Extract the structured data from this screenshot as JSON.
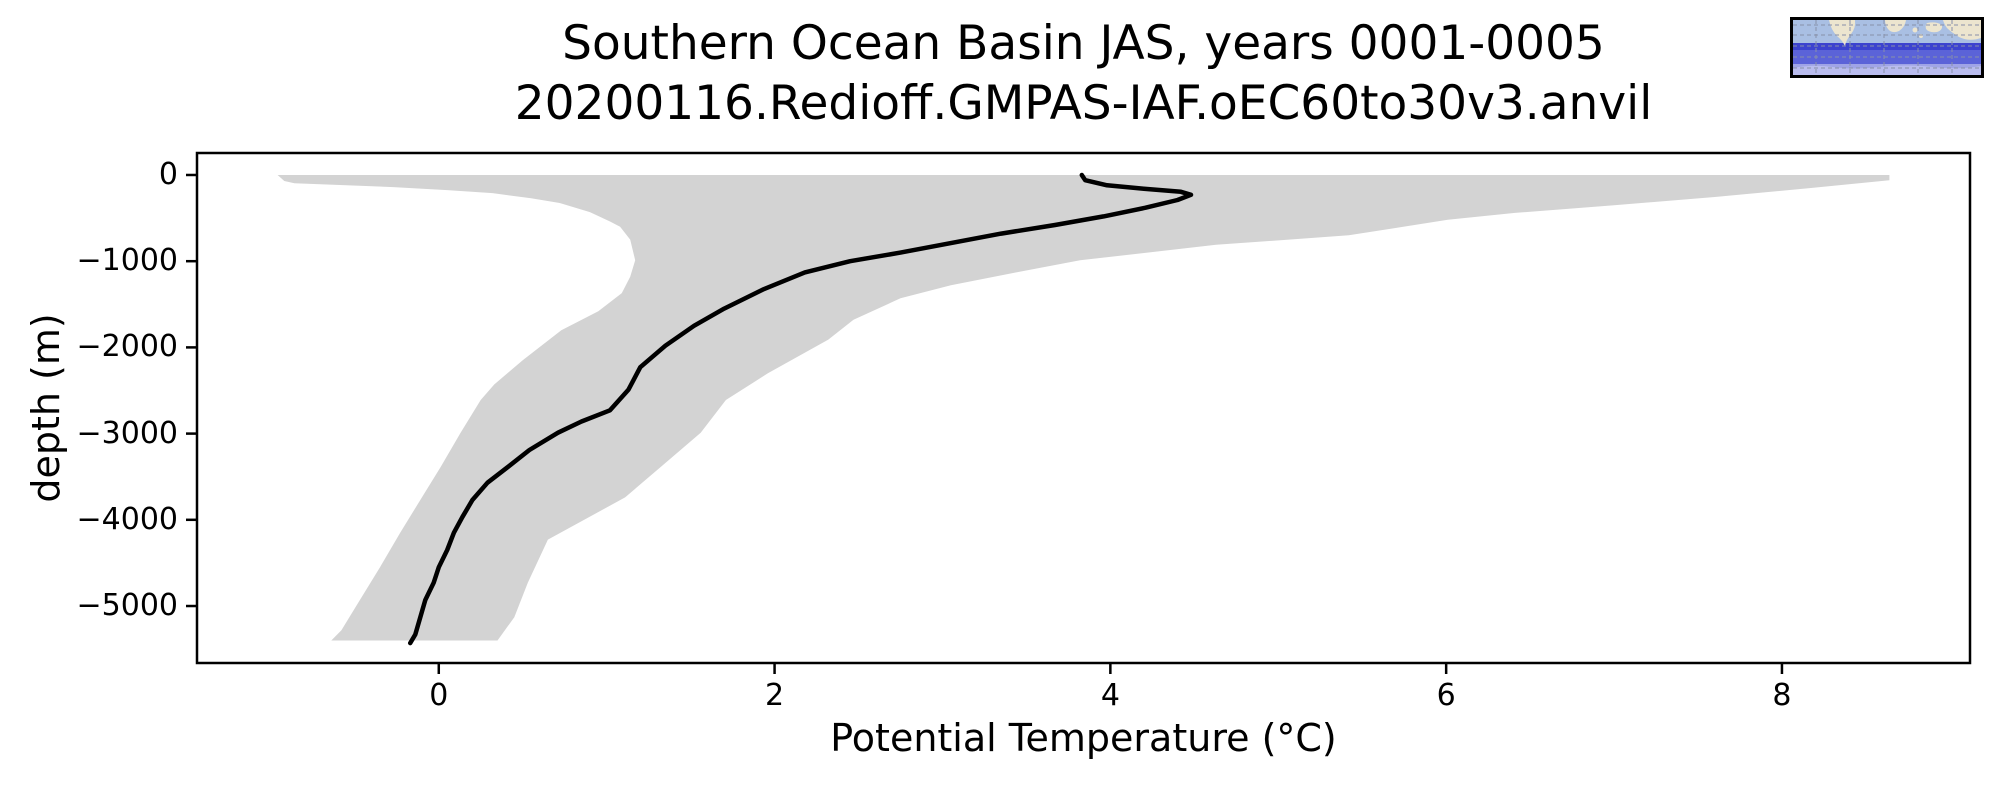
{
  "chart_data": {
    "type": "line",
    "title_line1": "Southern Ocean Basin JAS, years 0001-0005",
    "title_line2": "20200116.Redioff.GMPAS-IAF.oEC60to30v3.anvil",
    "xlabel": "Potential Temperature (°C)",
    "ylabel": "depth (m)",
    "xlim": [
      -1.44,
      9.12
    ],
    "ylim_bottom": -5661,
    "ylim_top": 255,
    "xticks": [
      0,
      2,
      4,
      6,
      8
    ],
    "yticks": [
      0,
      -1000,
      -2000,
      -3000,
      -4000,
      -5000
    ],
    "grid": false,
    "legend_position": "none",
    "colors": {
      "envelope_fill": "#d3d3d3",
      "mean_line": "#000000",
      "axes": "#000000",
      "background": "#ffffff"
    },
    "series": [
      {
        "name": "mean",
        "role": "line",
        "points_temp_depth": [
          [
            3.83,
            0
          ],
          [
            3.85,
            -60
          ],
          [
            3.98,
            -120
          ],
          [
            4.2,
            -160
          ],
          [
            4.42,
            -195
          ],
          [
            4.48,
            -230
          ],
          [
            4.4,
            -290
          ],
          [
            4.21,
            -380
          ],
          [
            3.96,
            -480
          ],
          [
            3.67,
            -580
          ],
          [
            3.35,
            -680
          ],
          [
            3.05,
            -790
          ],
          [
            2.75,
            -900
          ],
          [
            2.45,
            -1000
          ],
          [
            2.18,
            -1130
          ],
          [
            1.93,
            -1330
          ],
          [
            1.7,
            -1550
          ],
          [
            1.52,
            -1750
          ],
          [
            1.35,
            -1980
          ],
          [
            1.2,
            -2230
          ],
          [
            1.13,
            -2490
          ],
          [
            1.02,
            -2730
          ],
          [
            0.85,
            -2860
          ],
          [
            0.71,
            -2990
          ],
          [
            0.54,
            -3190
          ],
          [
            0.41,
            -3390
          ],
          [
            0.29,
            -3570
          ],
          [
            0.2,
            -3770
          ],
          [
            0.14,
            -3970
          ],
          [
            0.09,
            -4150
          ],
          [
            0.05,
            -4350
          ],
          [
            0.0,
            -4550
          ],
          [
            -0.03,
            -4730
          ],
          [
            -0.08,
            -4930
          ],
          [
            -0.11,
            -5130
          ],
          [
            -0.14,
            -5330
          ],
          [
            -0.17,
            -5430
          ]
        ]
      },
      {
        "name": "min",
        "role": "envelope-lower-bound",
        "points_temp_depth": [
          [
            -0.96,
            0
          ],
          [
            -0.92,
            -70
          ],
          [
            -0.86,
            -95
          ],
          [
            -0.55,
            -120
          ],
          [
            -0.27,
            -140
          ],
          [
            0.05,
            -175
          ],
          [
            0.32,
            -210
          ],
          [
            0.55,
            -270
          ],
          [
            0.72,
            -325
          ],
          [
            0.9,
            -430
          ],
          [
            1.02,
            -540
          ],
          [
            1.08,
            -600
          ],
          [
            1.14,
            -750
          ],
          [
            1.17,
            -990
          ],
          [
            1.14,
            -1180
          ],
          [
            1.09,
            -1370
          ],
          [
            0.95,
            -1580
          ],
          [
            0.73,
            -1800
          ],
          [
            0.5,
            -2150
          ],
          [
            0.33,
            -2430
          ],
          [
            0.25,
            -2610
          ],
          [
            0.13,
            -2990
          ],
          [
            0.01,
            -3390
          ],
          [
            -0.11,
            -3770
          ],
          [
            -0.23,
            -4150
          ],
          [
            -0.35,
            -4550
          ],
          [
            -0.47,
            -4930
          ],
          [
            -0.58,
            -5280
          ],
          [
            -0.64,
            -5400
          ]
        ]
      },
      {
        "name": "max",
        "role": "envelope-upper-bound",
        "points_temp_depth": [
          [
            8.64,
            0
          ],
          [
            8.64,
            -60
          ],
          [
            8.18,
            -150
          ],
          [
            7.6,
            -255
          ],
          [
            7.0,
            -350
          ],
          [
            6.41,
            -440
          ],
          [
            6.01,
            -520
          ],
          [
            5.42,
            -700
          ],
          [
            4.63,
            -810
          ],
          [
            3.82,
            -990
          ],
          [
            3.44,
            -1130
          ],
          [
            3.05,
            -1280
          ],
          [
            2.75,
            -1430
          ],
          [
            2.47,
            -1680
          ],
          [
            2.32,
            -1910
          ],
          [
            1.96,
            -2300
          ],
          [
            1.71,
            -2610
          ],
          [
            1.56,
            -2990
          ],
          [
            1.32,
            -3390
          ],
          [
            1.11,
            -3740
          ],
          [
            0.65,
            -4230
          ],
          [
            0.53,
            -4730
          ],
          [
            0.45,
            -5130
          ],
          [
            0.35,
            -5400
          ]
        ]
      }
    ],
    "inset_map": {
      "type": "region-locator-world-map",
      "highlight": "southern-latitude-band"
    }
  }
}
